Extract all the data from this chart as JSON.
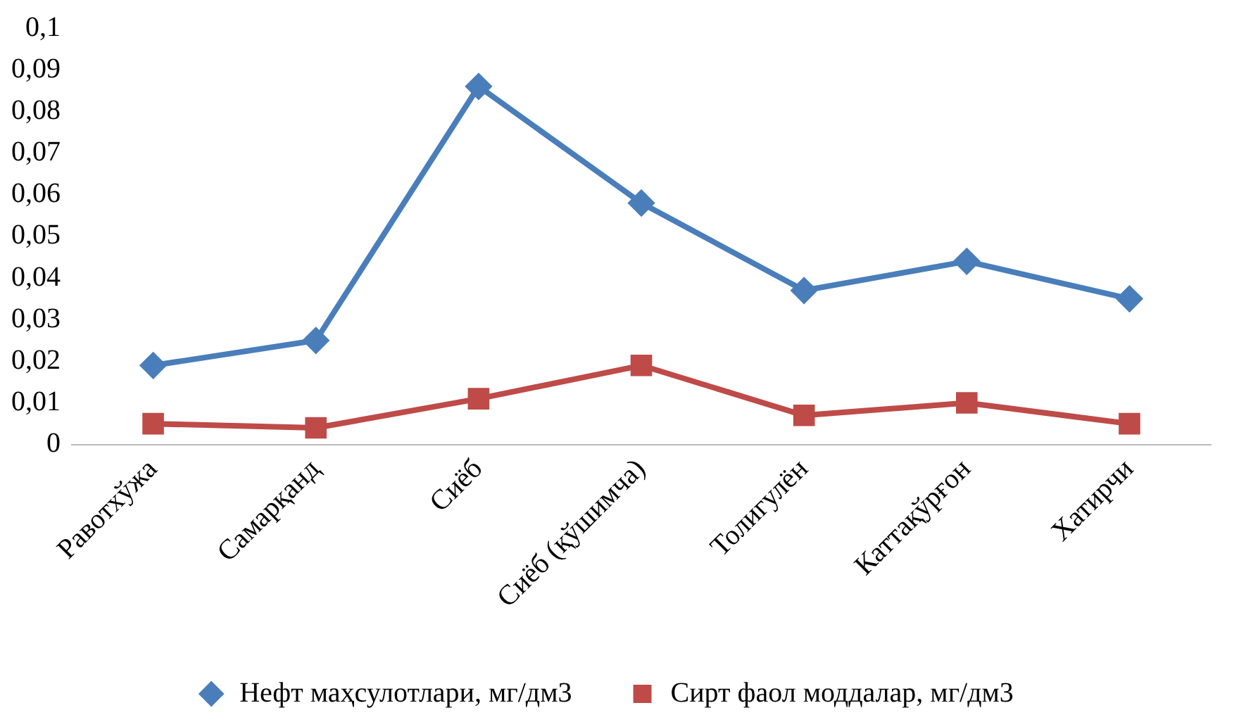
{
  "chart_data": {
    "type": "line",
    "categories": [
      "Равотхўжа",
      "Самарқанд",
      "Сиёб",
      "Сиёб (қўшимча)",
      "Толигулён",
      "Каттақўрғон",
      "Хатирчи"
    ],
    "series": [
      {
        "name": "Нефт маҳсулотлари, мг/дм3",
        "color": "#4a7ebb",
        "marker": "diamond",
        "values": [
          0.019,
          0.025,
          0.086,
          0.058,
          0.037,
          0.044,
          0.035
        ]
      },
      {
        "name": "Сирт фаол моддалар, мг/дм3",
        "color": "#be4b48",
        "marker": "square",
        "values": [
          0.005,
          0.004,
          0.011,
          0.019,
          0.007,
          0.01,
          0.005
        ]
      }
    ],
    "ylim": [
      0,
      0.1
    ],
    "yticks": [
      {
        "value": 0,
        "label": "0"
      },
      {
        "value": 0.01,
        "label": "0,01"
      },
      {
        "value": 0.02,
        "label": "0,02"
      },
      {
        "value": 0.03,
        "label": "0,03"
      },
      {
        "value": 0.04,
        "label": "0,04"
      },
      {
        "value": 0.05,
        "label": "0,05"
      },
      {
        "value": 0.06,
        "label": "0,06"
      },
      {
        "value": 0.07,
        "label": "0,07"
      },
      {
        "value": 0.08,
        "label": "0,08"
      },
      {
        "value": 0.09,
        "label": "0,09"
      },
      {
        "value": 0.1,
        "label": "0,1"
      }
    ],
    "grid": false,
    "legend": "bottom",
    "line_style": "solid"
  }
}
